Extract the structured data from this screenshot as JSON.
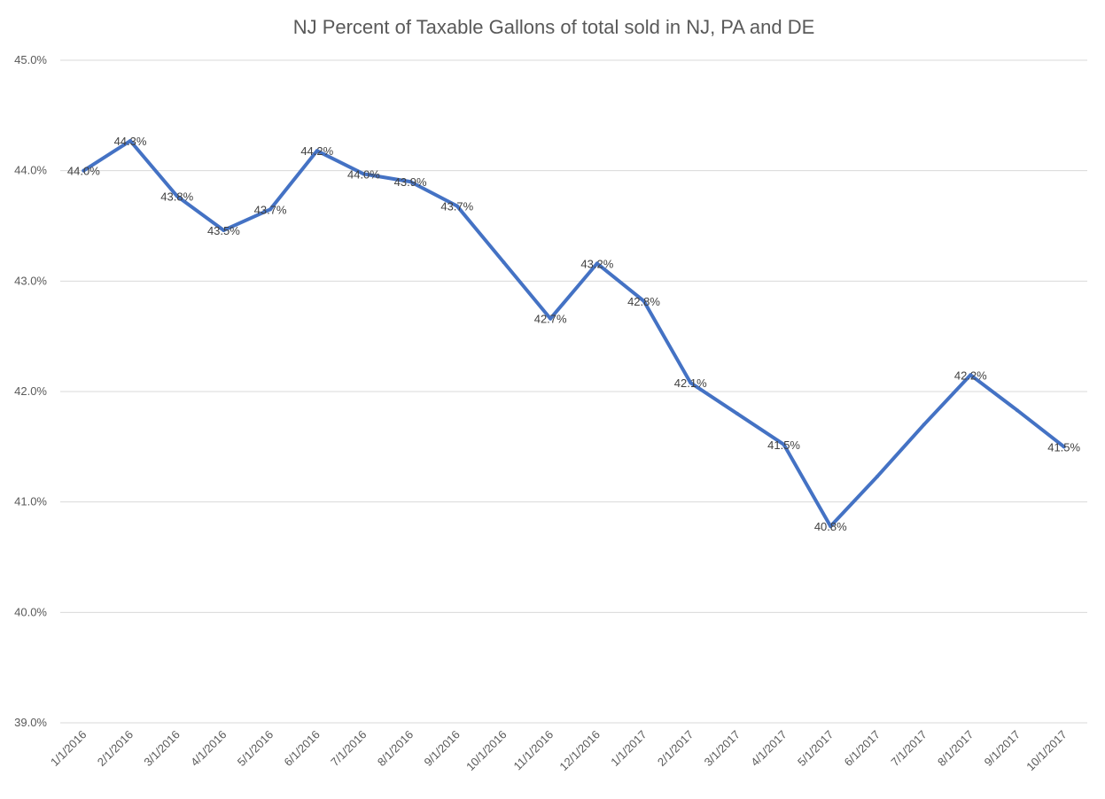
{
  "chart_data": {
    "type": "line",
    "title": "NJ Percent of Taxable Gallons of total sold in NJ, PA and DE",
    "xlabel": "",
    "ylabel": "",
    "ylim": [
      39.0,
      45.0
    ],
    "yticks": [
      "39.0%",
      "40.0%",
      "41.0%",
      "42.0%",
      "43.0%",
      "44.0%",
      "45.0%"
    ],
    "grid": "horizontal",
    "legend": "none",
    "colors": {
      "line": "#4472c4",
      "grid": "#d9d9d9",
      "text": "#595959"
    },
    "categories": [
      "1/1/2016",
      "2/1/2016",
      "3/1/2016",
      "4/1/2016",
      "5/1/2016",
      "6/1/2016",
      "7/1/2016",
      "8/1/2016",
      "9/1/2016",
      "10/1/2016",
      "11/1/2016",
      "12/1/2016",
      "1/1/2017",
      "2/1/2017",
      "3/1/2017",
      "4/1/2017",
      "5/1/2017",
      "6/1/2017",
      "7/1/2017",
      "8/1/2017",
      "9/1/2017",
      "10/1/2017"
    ],
    "series": [
      {
        "values": [
          44.0,
          44.27,
          43.77,
          43.46,
          43.65,
          44.18,
          43.97,
          43.9,
          43.68,
          43.17,
          42.66,
          43.16,
          42.82,
          42.08,
          41.8,
          41.52,
          40.78,
          41.23,
          41.7,
          42.15,
          41.83,
          41.5
        ],
        "labels": [
          "44.0%",
          "44.3%",
          "43.8%",
          "43.5%",
          "43.7%",
          "44.2%",
          "44.0%",
          "43.9%",
          "43.7%",
          "",
          "42.7%",
          "43.2%",
          "42.8%",
          "42.1%",
          "",
          "41.5%",
          "40.8%",
          "",
          "",
          "42.2%",
          "",
          "41.5%"
        ]
      }
    ]
  }
}
